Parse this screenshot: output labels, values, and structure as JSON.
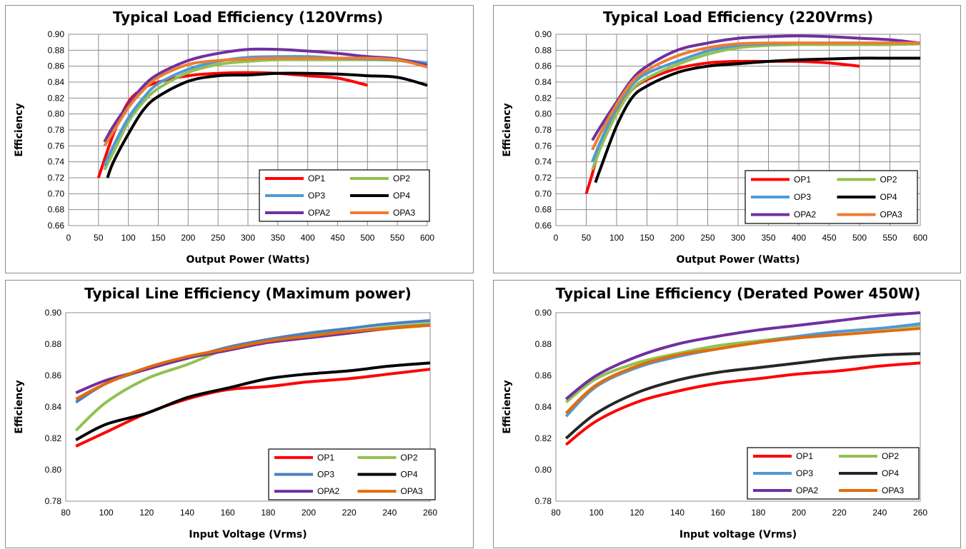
{
  "colors": {
    "OP1": "#ff0000",
    "OP2": "#92c050",
    "OP3_load": "#4e9ad6",
    "OP3_line": "#4a7fc1",
    "OP4": "#000000",
    "OP4_derated": "#262626",
    "OPA2": "#7030a0",
    "OPA3_load": "#ed7d31",
    "OPA3_line": "#e36c09",
    "grid": "#8c8c8c"
  },
  "chart_data": [
    {
      "type": "line",
      "title": "Typical Load Efficiency (120Vrms)",
      "xlabel": "Output Power (Watts)",
      "ylabel": "Efficiency",
      "xlim": [
        0,
        600
      ],
      "ylim": [
        0.66,
        0.9
      ],
      "xticks": [
        "0",
        "50",
        "100",
        "150",
        "200",
        "250",
        "300",
        "350",
        "400",
        "450",
        "500",
        "550",
        "600"
      ],
      "yticks": [
        "0.66",
        "0.68",
        "0.70",
        "0.72",
        "0.74",
        "0.76",
        "0.78",
        "0.80",
        "0.82",
        "0.84",
        "0.86",
        "0.88",
        "0.90"
      ],
      "grid": true,
      "legend_position": "bottom-right",
      "series": [
        {
          "name": "OP1",
          "color_key": "OP1",
          "x": [
            50,
            75,
            100,
            125,
            150,
            200,
            250,
            300,
            350,
            400,
            450,
            500
          ],
          "y": [
            0.72,
            0.775,
            0.815,
            0.832,
            0.84,
            0.848,
            0.851,
            0.852,
            0.851,
            0.848,
            0.845,
            0.836
          ]
        },
        {
          "name": "OP2",
          "color_key": "OP2",
          "x": [
            60,
            75,
            100,
            125,
            150,
            200,
            250,
            300,
            350,
            400,
            450,
            500,
            550,
            600
          ],
          "y": [
            0.73,
            0.752,
            0.79,
            0.815,
            0.832,
            0.852,
            0.862,
            0.866,
            0.868,
            0.868,
            0.868,
            0.868,
            0.867,
            0.862
          ]
        },
        {
          "name": "OP3",
          "color_key": "OP3_load",
          "x": [
            60,
            75,
            100,
            125,
            150,
            200,
            250,
            300,
            350,
            400,
            450,
            500,
            550,
            600
          ],
          "y": [
            0.735,
            0.76,
            0.795,
            0.82,
            0.838,
            0.856,
            0.866,
            0.871,
            0.872,
            0.872,
            0.87,
            0.869,
            0.868,
            0.864
          ]
        },
        {
          "name": "OP4",
          "color_key": "OP4",
          "x": [
            65,
            75,
            100,
            125,
            150,
            200,
            250,
            300,
            350,
            400,
            450,
            500,
            550,
            600
          ],
          "y": [
            0.72,
            0.74,
            0.775,
            0.805,
            0.822,
            0.841,
            0.848,
            0.849,
            0.851,
            0.851,
            0.85,
            0.848,
            0.846,
            0.836
          ]
        },
        {
          "name": "OPA2",
          "color_key": "OPA2",
          "x": [
            60,
            75,
            100,
            125,
            150,
            200,
            250,
            300,
            350,
            400,
            450,
            500,
            550,
            600
          ],
          "y": [
            0.765,
            0.785,
            0.812,
            0.835,
            0.85,
            0.867,
            0.876,
            0.881,
            0.881,
            0.879,
            0.876,
            0.872,
            0.869,
            0.861
          ]
        },
        {
          "name": "OPA3",
          "color_key": "OPA3_load",
          "x": [
            60,
            75,
            100,
            125,
            150,
            200,
            250,
            300,
            350,
            400,
            450,
            500,
            550,
            600
          ],
          "y": [
            0.76,
            0.778,
            0.808,
            0.83,
            0.846,
            0.862,
            0.867,
            0.869,
            0.87,
            0.87,
            0.87,
            0.87,
            0.868,
            0.859
          ]
        }
      ]
    },
    {
      "type": "line",
      "title": "Typical Load Efficiency (220Vrms)",
      "xlabel": "Output Power (Watts)",
      "ylabel": "Efficiency",
      "xlim": [
        0,
        600
      ],
      "ylim": [
        0.66,
        0.9
      ],
      "xticks": [
        "0",
        "50",
        "100",
        "150",
        "200",
        "250",
        "300",
        "350",
        "400",
        "450",
        "500",
        "550",
        "600"
      ],
      "yticks": [
        "0.66",
        "0.68",
        "0.70",
        "0.72",
        "0.74",
        "0.76",
        "0.78",
        "0.80",
        "0.82",
        "0.84",
        "0.86",
        "0.88",
        "0.90"
      ],
      "grid": true,
      "legend_position": "bottom-right",
      "series": [
        {
          "name": "OP1",
          "color_key": "OP1",
          "x": [
            50,
            60,
            75,
            100,
            125,
            150,
            200,
            250,
            300,
            350,
            400,
            450,
            500
          ],
          "y": [
            0.7,
            0.725,
            0.765,
            0.805,
            0.83,
            0.843,
            0.857,
            0.864,
            0.866,
            0.866,
            0.866,
            0.864,
            0.86
          ]
        },
        {
          "name": "OP2",
          "color_key": "OP2",
          "x": [
            60,
            75,
            100,
            125,
            150,
            200,
            250,
            300,
            350,
            400,
            450,
            500,
            550,
            600
          ],
          "y": [
            0.73,
            0.76,
            0.8,
            0.83,
            0.845,
            0.862,
            0.875,
            0.883,
            0.886,
            0.887,
            0.887,
            0.887,
            0.887,
            0.888
          ]
        },
        {
          "name": "OP3",
          "color_key": "OP3_load",
          "x": [
            60,
            75,
            100,
            125,
            150,
            200,
            250,
            300,
            350,
            400,
            450,
            500,
            550,
            600
          ],
          "y": [
            0.74,
            0.768,
            0.808,
            0.836,
            0.851,
            0.866,
            0.879,
            0.886,
            0.888,
            0.889,
            0.889,
            0.889,
            0.889,
            0.889
          ]
        },
        {
          "name": "OP4",
          "color_key": "OP4",
          "x": [
            65,
            75,
            100,
            125,
            150,
            200,
            250,
            300,
            350,
            400,
            450,
            500,
            550,
            600
          ],
          "y": [
            0.714,
            0.735,
            0.785,
            0.82,
            0.835,
            0.852,
            0.86,
            0.863,
            0.866,
            0.868,
            0.869,
            0.87,
            0.87,
            0.87
          ]
        },
        {
          "name": "OPA2",
          "color_key": "OPA2",
          "x": [
            60,
            75,
            100,
            125,
            150,
            200,
            250,
            300,
            350,
            400,
            450,
            500,
            550,
            600
          ],
          "y": [
            0.767,
            0.786,
            0.815,
            0.843,
            0.86,
            0.88,
            0.889,
            0.895,
            0.897,
            0.898,
            0.897,
            0.895,
            0.893,
            0.889
          ]
        },
        {
          "name": "OPA3",
          "color_key": "OPA3_load",
          "x": [
            60,
            75,
            100,
            125,
            150,
            200,
            250,
            300,
            350,
            400,
            450,
            500,
            550,
            600
          ],
          "y": [
            0.755,
            0.778,
            0.812,
            0.84,
            0.855,
            0.873,
            0.883,
            0.888,
            0.889,
            0.889,
            0.889,
            0.889,
            0.889,
            0.889
          ]
        }
      ]
    },
    {
      "type": "line",
      "title": "Typical Line Efficiency (Maximum power)",
      "xlabel": "Input Voltage (Vrms)",
      "ylabel": "Efficiency",
      "xlim": [
        80,
        260
      ],
      "ylim": [
        0.78,
        0.9
      ],
      "xticks": [
        "80",
        "100",
        "120",
        "140",
        "160",
        "180",
        "200",
        "220",
        "240",
        "260"
      ],
      "yticks": [
        "0.78",
        "0.80",
        "0.82",
        "0.84",
        "0.86",
        "0.88",
        "0.90"
      ],
      "grid": false,
      "legend_position": "bottom-right",
      "series": [
        {
          "name": "OP1",
          "color_key": "OP1",
          "x": [
            85,
            100,
            120,
            140,
            160,
            180,
            200,
            220,
            240,
            260
          ],
          "y": [
            0.815,
            0.824,
            0.836,
            0.845,
            0.851,
            0.853,
            0.856,
            0.858,
            0.861,
            0.864
          ]
        },
        {
          "name": "OP2",
          "color_key": "OP2",
          "x": [
            85,
            100,
            120,
            140,
            160,
            180,
            200,
            220,
            240,
            260
          ],
          "y": [
            0.825,
            0.843,
            0.858,
            0.867,
            0.877,
            0.882,
            0.886,
            0.888,
            0.891,
            0.893
          ]
        },
        {
          "name": "OP3",
          "color_key": "OP3_line",
          "x": [
            85,
            100,
            120,
            140,
            160,
            180,
            200,
            220,
            240,
            260
          ],
          "y": [
            0.843,
            0.855,
            0.864,
            0.871,
            0.878,
            0.883,
            0.887,
            0.89,
            0.893,
            0.895
          ]
        },
        {
          "name": "OP4",
          "color_key": "OP4",
          "x": [
            85,
            100,
            120,
            140,
            160,
            180,
            200,
            220,
            240,
            260
          ],
          "y": [
            0.819,
            0.829,
            0.836,
            0.846,
            0.852,
            0.858,
            0.861,
            0.863,
            0.866,
            0.868
          ]
        },
        {
          "name": "OPA2",
          "color_key": "OPA2",
          "x": [
            85,
            100,
            120,
            140,
            160,
            180,
            200,
            220,
            240,
            260
          ],
          "y": [
            0.849,
            0.857,
            0.864,
            0.871,
            0.876,
            0.881,
            0.884,
            0.887,
            0.89,
            0.892
          ]
        },
        {
          "name": "OPA3",
          "color_key": "OPA3_line",
          "x": [
            85,
            100,
            120,
            140,
            160,
            180,
            200,
            220,
            240,
            260
          ],
          "y": [
            0.845,
            0.855,
            0.865,
            0.872,
            0.877,
            0.882,
            0.885,
            0.888,
            0.89,
            0.892
          ]
        }
      ]
    },
    {
      "type": "line",
      "title": "Typical Line Efficiency (Derated Power 450W)",
      "xlabel": "Input voltage (Vrms)",
      "ylabel": "Efficiency",
      "xlim": [
        80,
        260
      ],
      "ylim": [
        0.78,
        0.9
      ],
      "xticks": [
        "80",
        "100",
        "120",
        "140",
        "160",
        "180",
        "200",
        "220",
        "240",
        "260"
      ],
      "yticks": [
        "0.78",
        "0.80",
        "0.82",
        "0.84",
        "0.86",
        "0.88",
        "0.90"
      ],
      "grid": false,
      "legend_position": "bottom-right",
      "series": [
        {
          "name": "OP1",
          "color_key": "OP1",
          "x": [
            85,
            100,
            120,
            140,
            160,
            180,
            200,
            220,
            240,
            260
          ],
          "y": [
            0.816,
            0.831,
            0.843,
            0.85,
            0.855,
            0.858,
            0.861,
            0.863,
            0.866,
            0.868
          ]
        },
        {
          "name": "OP2",
          "color_key": "OP2",
          "x": [
            85,
            100,
            120,
            140,
            160,
            180,
            200,
            220,
            240,
            260
          ],
          "y": [
            0.843,
            0.858,
            0.868,
            0.874,
            0.879,
            0.882,
            0.885,
            0.888,
            0.89,
            0.892
          ]
        },
        {
          "name": "OP3",
          "color_key": "OP3_load",
          "x": [
            85,
            100,
            120,
            140,
            160,
            180,
            200,
            220,
            240,
            260
          ],
          "y": [
            0.834,
            0.853,
            0.865,
            0.872,
            0.877,
            0.881,
            0.885,
            0.888,
            0.89,
            0.893
          ]
        },
        {
          "name": "OP4",
          "color_key": "OP4_derated",
          "x": [
            85,
            100,
            120,
            140,
            160,
            180,
            200,
            220,
            240,
            260
          ],
          "y": [
            0.82,
            0.836,
            0.849,
            0.857,
            0.862,
            0.865,
            0.868,
            0.871,
            0.873,
            0.874
          ]
        },
        {
          "name": "OPA2",
          "color_key": "OPA2",
          "x": [
            85,
            100,
            120,
            140,
            160,
            180,
            200,
            220,
            240,
            260
          ],
          "y": [
            0.845,
            0.86,
            0.872,
            0.88,
            0.885,
            0.889,
            0.892,
            0.895,
            0.898,
            0.9
          ]
        },
        {
          "name": "OPA3",
          "color_key": "OPA3_line",
          "x": [
            85,
            100,
            120,
            140,
            160,
            180,
            200,
            220,
            240,
            260
          ],
          "y": [
            0.836,
            0.854,
            0.866,
            0.873,
            0.877,
            0.881,
            0.884,
            0.886,
            0.888,
            0.89
          ]
        }
      ]
    }
  ]
}
